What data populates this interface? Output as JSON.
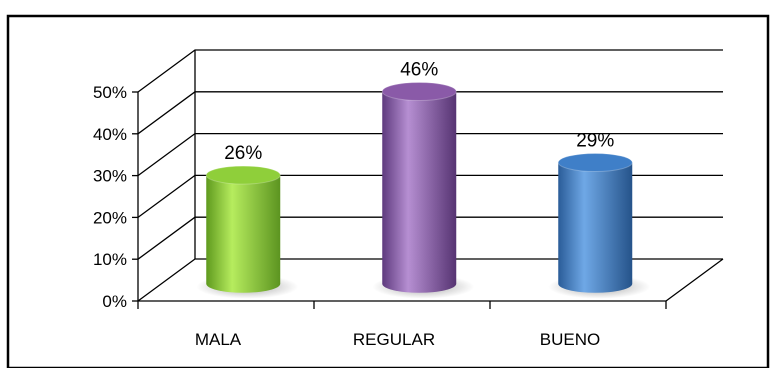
{
  "chart_data": {
    "type": "bar",
    "style": "3d-cylinder",
    "categories": [
      "MALA",
      "REGULAR",
      "BUENO"
    ],
    "values": [
      26,
      46,
      29
    ],
    "data_labels": [
      "26%",
      "46%",
      "29%"
    ],
    "yticks": [
      "0%",
      "10%",
      "20%",
      "30%",
      "40%",
      "50%"
    ],
    "ylim": [
      0,
      50
    ],
    "grid": true,
    "legend": "none",
    "title": "",
    "xlabel": "",
    "ylabel": "",
    "colors": {
      "MALA": "#8fcf3a",
      "REGULAR": "#8a5aa8",
      "BUENO": "#3f7fc8"
    }
  }
}
